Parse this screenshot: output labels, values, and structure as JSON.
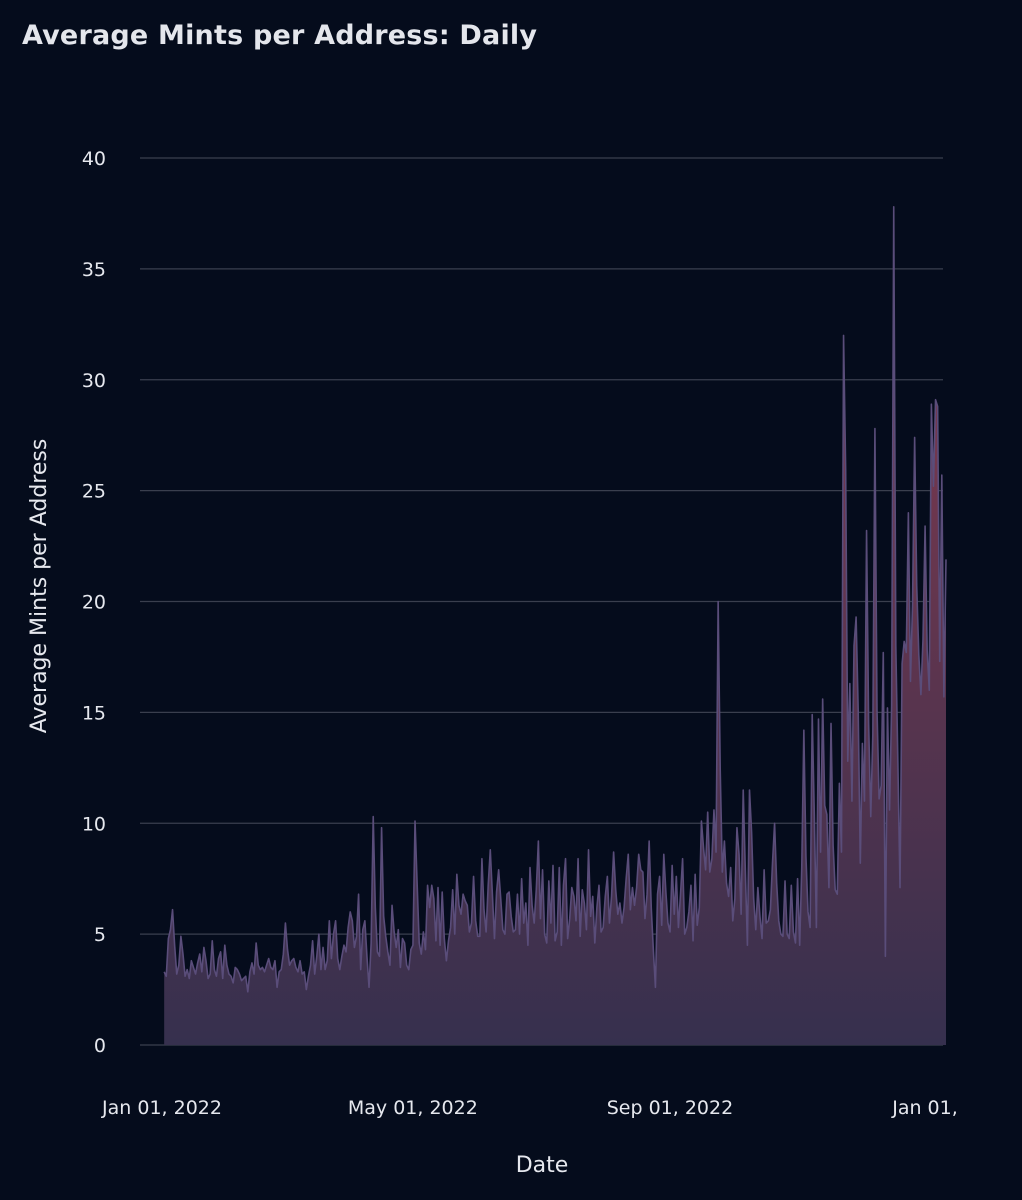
{
  "chart_data": {
    "type": "area",
    "title": "Average Mints per Address: Daily",
    "xlabel": "Date",
    "ylabel": "Average Mints per Address",
    "ylim": [
      0,
      40
    ],
    "yticks": [
      0,
      5,
      10,
      15,
      20,
      25,
      30,
      35,
      40
    ],
    "xticks": [
      "2022-01-01",
      "2022-05-01",
      "2022-09-01",
      "2023-01-01"
    ],
    "xtick_labels": [
      "Jan 01, 2022",
      "May 01, 2022",
      "Sep 01, 2022",
      "Jan 01,"
    ],
    "grid": true,
    "colors": {
      "line": "#5a4d7a",
      "fill_top": "#8a3a4e",
      "fill_bottom": "#36304e"
    },
    "series": [
      {
        "start_date": "2022-01-03",
        "values": [
          3.3,
          3.1,
          4.8,
          5.2,
          6.1,
          4.5,
          3.2,
          3.6,
          4.9,
          4.1,
          3.1,
          3.4,
          3.0,
          3.8,
          3.5,
          3.2,
          3.7,
          4.1,
          3.3,
          4.4,
          3.8,
          3.0,
          3.2,
          4.7,
          3.4,
          3.1,
          3.9,
          4.2,
          3.0,
          4.5,
          3.6,
          3.2,
          3.1,
          2.8,
          3.5,
          3.4,
          3.2,
          2.9,
          3.0,
          3.1,
          2.4,
          3.3,
          3.7,
          3.2,
          4.6,
          3.6,
          3.4,
          3.5,
          3.3,
          3.6,
          3.9,
          3.5,
          3.4,
          3.8,
          2.6,
          3.3,
          3.4,
          4.1,
          5.5,
          4.3,
          3.6,
          3.8,
          3.9,
          3.5,
          3.3,
          3.8,
          3.2,
          3.3,
          2.5,
          3.1,
          3.6,
          4.7,
          3.2,
          4.0,
          5.0,
          3.4,
          4.4,
          3.4,
          3.8,
          5.6,
          3.9,
          5.0,
          5.6,
          3.9,
          3.4,
          4.0,
          4.5,
          4.2,
          5.3,
          6.0,
          5.6,
          4.4,
          4.9,
          6.8,
          3.4,
          5.2,
          5.6,
          4.0,
          2.6,
          4.6,
          10.3,
          6.2,
          4.2,
          4.0,
          9.8,
          5.8,
          4.9,
          4.2,
          3.6,
          6.3,
          5.1,
          4.4,
          5.2,
          3.5,
          4.8,
          4.6,
          3.6,
          3.4,
          4.3,
          4.5,
          10.1,
          7.3,
          4.6,
          4.1,
          5.1,
          4.3,
          7.2,
          6.2,
          7.2,
          6.6,
          4.7,
          7.1,
          4.5,
          6.9,
          4.8,
          3.8,
          4.7,
          5.3,
          7.0,
          5.0,
          7.7,
          6.3,
          5.9,
          6.8,
          6.5,
          6.3,
          5.1,
          5.5,
          7.6,
          5.6,
          4.9,
          4.9,
          8.4,
          6.1,
          5.1,
          7.2,
          8.8,
          6.8,
          4.8,
          6.9,
          7.9,
          6.6,
          5.2,
          5.0,
          6.8,
          6.9,
          5.8,
          5.1,
          5.2,
          6.8,
          5.0,
          7.5,
          5.5,
          6.4,
          4.5,
          8.0,
          6.3,
          5.5,
          7.0,
          9.2,
          5.7,
          7.9,
          5.0,
          4.6,
          7.4,
          5.5,
          8.1,
          4.7,
          5.1,
          8.0,
          4.5,
          7.2,
          8.4,
          4.8,
          5.7,
          7.1,
          6.7,
          5.6,
          8.4,
          4.9,
          7.0,
          6.4,
          5.2,
          8.8,
          5.8,
          6.7,
          4.6,
          6.2,
          7.2,
          5.1,
          5.3,
          6.7,
          7.6,
          5.5,
          6.7,
          8.7,
          7.0,
          5.9,
          6.4,
          5.5,
          6.2,
          7.5,
          8.6,
          6.1,
          7.1,
          6.3,
          7.1,
          8.6,
          7.9,
          7.8,
          5.7,
          6.8,
          9.2,
          6.2,
          4.3,
          2.6,
          6.8,
          7.6,
          5.4,
          8.6,
          6.9,
          5.5,
          5.1,
          8.1,
          5.9,
          7.6,
          5.3,
          6.8,
          8.4,
          5.0,
          5.3,
          6.0,
          7.2,
          4.7,
          7.7,
          5.4,
          6.2,
          10.1,
          8.9,
          7.9,
          10.5,
          7.8,
          8.4,
          10.6,
          8.7,
          20.0,
          12.4,
          7.8,
          9.2,
          7.3,
          6.7,
          8.0,
          5.6,
          6.6,
          9.8,
          8.6,
          5.9,
          11.5,
          7.9,
          4.5,
          11.5,
          9.6,
          6.6,
          5.2,
          7.1,
          5.8,
          4.8,
          7.9,
          5.5,
          5.6,
          6.1,
          8.2,
          10.0,
          7.3,
          5.6,
          5.0,
          4.9,
          7.4,
          5.0,
          4.8,
          7.2,
          5.1,
          4.6,
          7.5,
          4.5,
          8.0,
          14.2,
          8.5,
          6.0,
          5.3,
          14.9,
          10.4,
          5.3,
          14.7,
          8.7,
          15.6,
          10.8,
          10.4,
          7.1,
          14.5,
          9.0,
          7.0,
          6.8,
          11.8,
          8.7,
          32.0,
          26.0,
          12.8,
          16.3,
          11.0,
          18.0,
          19.3,
          15.1,
          8.2,
          13.6,
          11.0,
          23.2,
          14.5,
          10.3,
          14.0,
          27.8,
          15.1,
          11.1,
          11.7,
          17.7,
          4.0,
          15.2,
          10.6,
          15.3,
          37.8,
          18.0,
          12.6,
          7.1,
          17.2,
          18.2,
          17.7,
          24.0,
          16.4,
          19.9,
          27.4,
          20.7,
          17.6,
          15.8,
          18.3,
          23.4,
          17.8,
          16.0,
          28.9,
          25.2,
          29.1,
          28.8,
          17.3,
          25.7,
          15.7,
          21.9
        ]
      }
    ]
  }
}
